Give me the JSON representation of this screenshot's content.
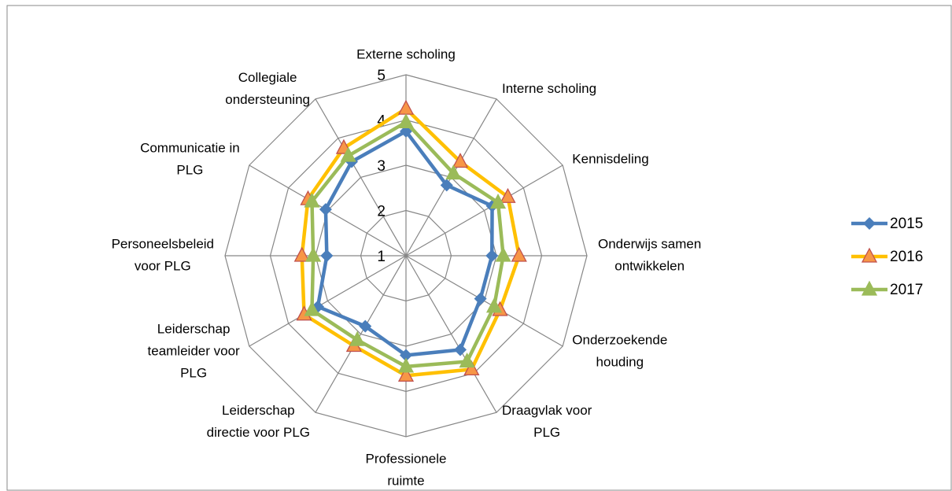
{
  "chart_data": {
    "type": "radar",
    "categories": [
      [
        "Externe scholing"
      ],
      [
        "Interne scholing"
      ],
      [
        "Kennisdeling"
      ],
      [
        "Onderwijs samen",
        "ontwikkelen"
      ],
      [
        "Onderzoekende",
        "houding"
      ],
      [
        "Draagvlak voor",
        "PLG"
      ],
      [
        "Professionele",
        "ruimte"
      ],
      [
        "Leiderschap",
        "directie voor PLG"
      ],
      [
        "Leiderschap",
        "teamleider voor",
        "PLG"
      ],
      [
        "Personeelsbeleid",
        "voor PLG"
      ],
      [
        "Communicatie in",
        "PLG"
      ],
      [
        "Collegiale",
        "ondersteuning"
      ]
    ],
    "series": [
      {
        "name": "2015",
        "color": "#4a7ebb",
        "marker": "diamond",
        "marker_color": "#4a7ebb",
        "values": [
          3.75,
          2.8,
          3.2,
          2.9,
          2.9,
          3.4,
          3.2,
          2.8,
          3.25,
          2.75,
          3.05,
          3.4
        ]
      },
      {
        "name": "2016",
        "color": "#ffc000",
        "marker": "triangle",
        "marker_color": "#f79646",
        "marker_edge": "#c0504d",
        "values": [
          4.25,
          3.4,
          3.6,
          3.5,
          3.4,
          3.9,
          3.65,
          3.3,
          3.6,
          3.3,
          3.5,
          3.75
        ]
      },
      {
        "name": "2017",
        "color": "#9bbb59",
        "marker": "triangle",
        "marker_color": "#9bbb59",
        "values": [
          3.95,
          3.1,
          3.35,
          3.15,
          3.25,
          3.7,
          3.45,
          3.15,
          3.4,
          3.05,
          3.4,
          3.55
        ]
      }
    ],
    "ylim": [
      1,
      5
    ],
    "yticks": [
      1,
      2,
      3,
      4,
      5
    ],
    "grid": true,
    "legend": "right"
  }
}
